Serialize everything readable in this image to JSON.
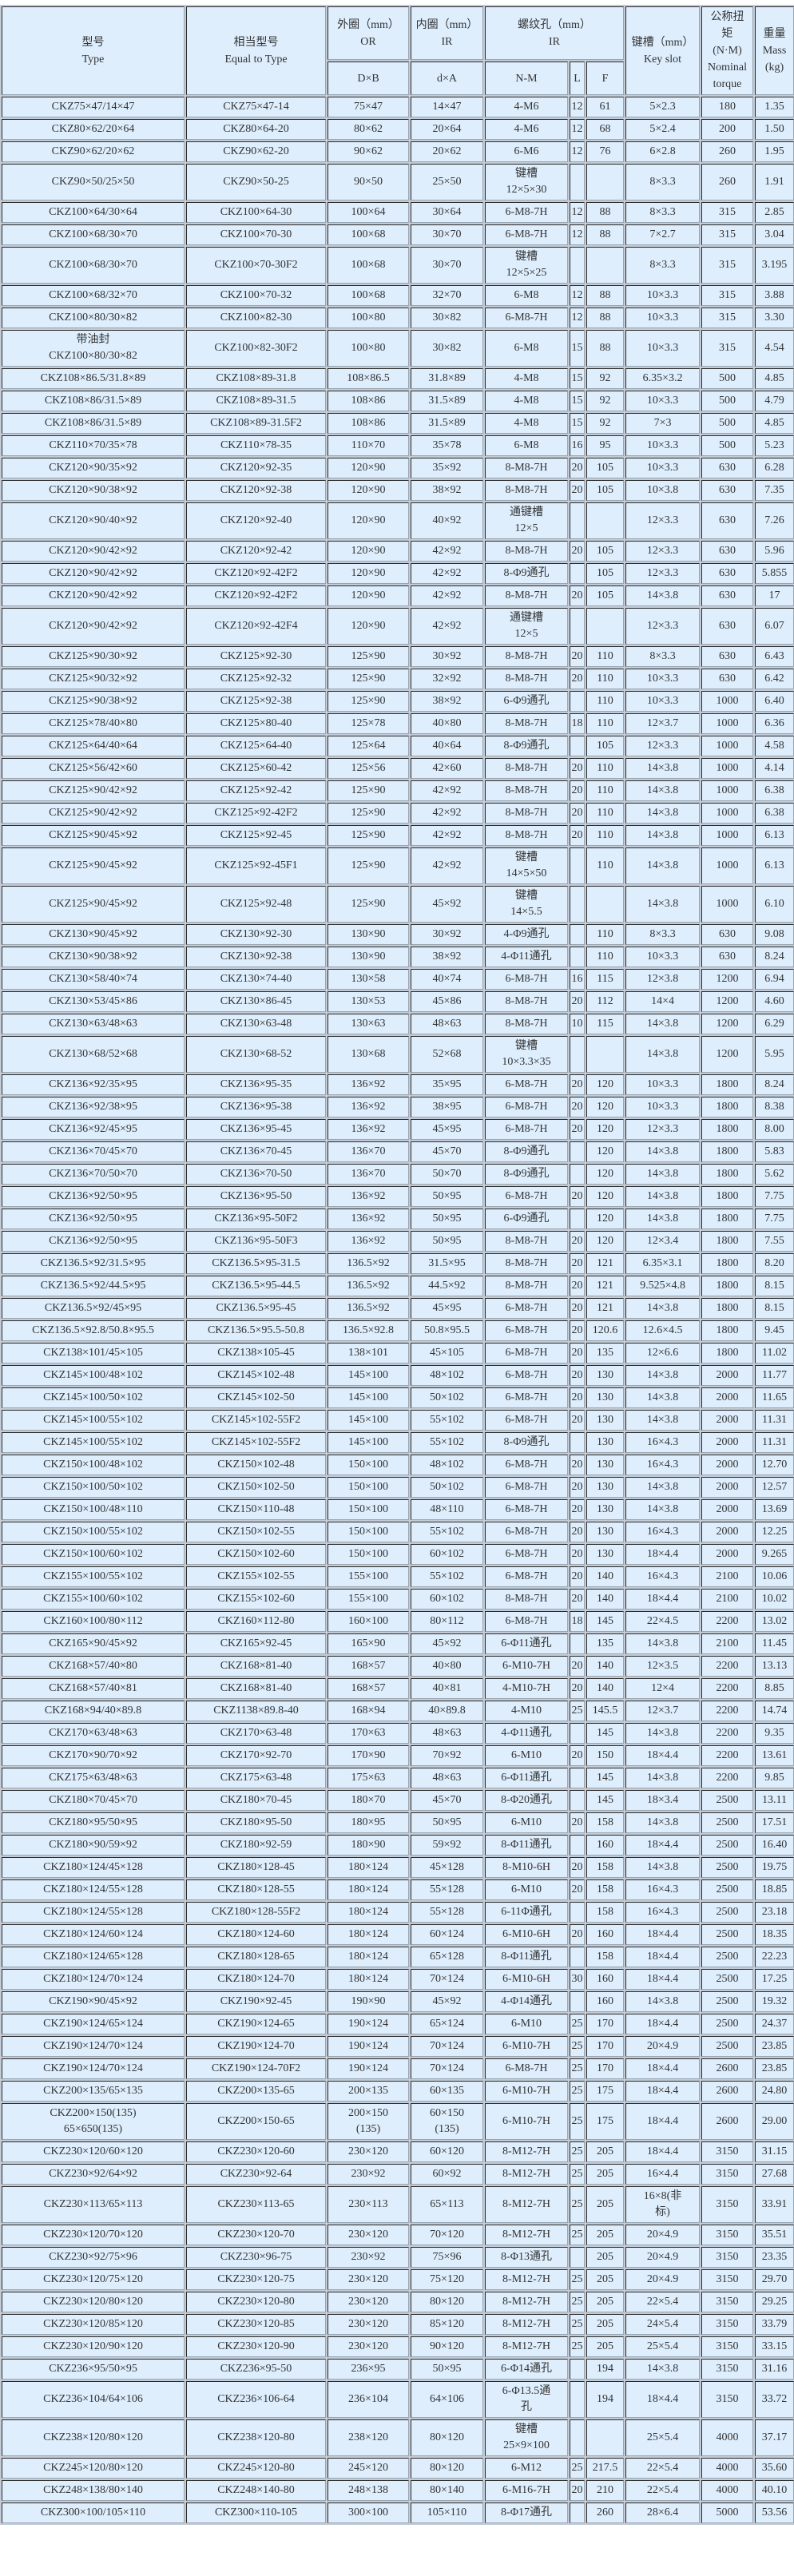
{
  "colors": {
    "cell_background": "#deeefd",
    "grid_background": "#c3ccd6",
    "text": "#333333"
  },
  "header": {
    "type": "型号\nType",
    "equal": "相当型号\nEqual to Type",
    "or": "外圈（mm）\nOR",
    "ir": "内圈（mm）\nIR",
    "thread": "螺纹孔（mm）\nIR",
    "key": "键槽（mm）\nKey slot",
    "torque": "公称扭\n矩\n(N·M)\nNominal\ntorque",
    "mass": "重量\nMass\n(kg)",
    "or_sub": "D×B",
    "ir_sub": "d×A",
    "nm_sub": "N-M",
    "l_sub": "L",
    "f_sub": "F"
  },
  "rows": [
    [
      "CKZ75×47/14×47",
      "CKZ75×47-14",
      "75×47",
      "14×47",
      "4-M6",
      "12",
      "61",
      "5×2.3",
      "180",
      "1.35"
    ],
    [
      "CKZ80×62/20×64",
      "CKZ80×64-20",
      "80×62",
      "20×64",
      "4-M6",
      "12",
      "68",
      "5×2.4",
      "200",
      "1.50"
    ],
    [
      "CKZ90×62/20×62",
      "CKZ90×62-20",
      "90×62",
      "20×62",
      "6-M6",
      "12",
      "76",
      "6×2.8",
      "260",
      "1.95"
    ],
    [
      "CKZ90×50/25×50",
      "CKZ90×50-25",
      "90×50",
      "25×50",
      "键槽\n12×5×30",
      "",
      "",
      "8×3.3",
      "260",
      "1.91"
    ],
    [
      "CKZ100×64/30×64",
      "CKZ100×64-30",
      "100×64",
      "30×64",
      "6-M8-7H",
      "12",
      "88",
      "8×3.3",
      "315",
      "2.85"
    ],
    [
      "CKZ100×68/30×70",
      "CKZ100×70-30",
      "100×68",
      "30×70",
      "6-M8-7H",
      "12",
      "88",
      "7×2.7",
      "315",
      "3.04"
    ],
    [
      "CKZ100×68/30×70",
      "CKZ100×70-30F2",
      "100×68",
      "30×70",
      "键槽\n12×5×25",
      "",
      "",
      "8×3.3",
      "315",
      "3.195"
    ],
    [
      "CKZ100×68/32×70",
      "CKZ100×70-32",
      "100×68",
      "32×70",
      "6-M8",
      "12",
      "88",
      "10×3.3",
      "315",
      "3.88"
    ],
    [
      "CKZ100×80/30×82",
      "CKZ100×82-30",
      "100×80",
      "30×82",
      "6-M8-7H",
      "12",
      "88",
      "10×3.3",
      "315",
      "3.30"
    ],
    [
      "带油封\nCKZ100×80/30×82",
      "CKZ100×82-30F2",
      "100×80",
      "30×82",
      "6-M8",
      "15",
      "88",
      "10×3.3",
      "315",
      "4.54"
    ],
    [
      "CKZ108×86.5/31.8×89",
      "CKZ108×89-31.8",
      "108×86.5",
      "31.8×89",
      "4-M8",
      "15",
      "92",
      "6.35×3.2",
      "500",
      "4.85"
    ],
    [
      "CKZ108×86/31.5×89",
      "CKZ108×89-31.5",
      "108×86",
      "31.5×89",
      "4-M8",
      "15",
      "92",
      "10×3.3",
      "500",
      "4.79"
    ],
    [
      "CKZ108×86/31.5×89",
      "CKZ108×89-31.5F2",
      "108×86",
      "31.5×89",
      "4-M8",
      "15",
      "92",
      "7×3",
      "500",
      "4.85"
    ],
    [
      "CKZ110×70/35×78",
      "CKZ110×78-35",
      "110×70",
      "35×78",
      "6-M8",
      "16",
      "95",
      "10×3.3",
      "500",
      "5.23"
    ],
    [
      "CKZ120×90/35×92",
      "CKZ120×92-35",
      "120×90",
      "35×92",
      "8-M8-7H",
      "20",
      "105",
      "10×3.3",
      "630",
      "6.28"
    ],
    [
      "CKZ120×90/38×92",
      "CKZ120×92-38",
      "120×90",
      "38×92",
      "8-M8-7H",
      "20",
      "105",
      "10×3.8",
      "630",
      "7.35"
    ],
    [
      "CKZ120×90/40×92",
      "CKZ120×92-40",
      "120×90",
      "40×92",
      "通键槽\n12×5",
      "",
      "",
      "12×3.3",
      "630",
      "7.26"
    ],
    [
      "CKZ120×90/42×92",
      "CKZ120×92-42",
      "120×90",
      "42×92",
      "8-M8-7H",
      "20",
      "105",
      "12×3.3",
      "630",
      "5.96"
    ],
    [
      "CKZ120×90/42×92",
      "CKZ120×92-42F2",
      "120×90",
      "42×92",
      "8-Φ9通孔",
      "",
      "105",
      "12×3.3",
      "630",
      "5.855"
    ],
    [
      "CKZ120×90/42×92",
      "CKZ120×92-42F2",
      "120×90",
      "42×92",
      "8-M8-7H",
      "20",
      "105",
      "14×3.8",
      "630",
      "17"
    ],
    [
      "CKZ120×90/42×92",
      "CKZ120×92-42F4",
      "120×90",
      "42×92",
      "通键槽\n12×5",
      "",
      "",
      "12×3.3",
      "630",
      "6.07"
    ],
    [
      "CKZ125×90/30×92",
      "CKZ125×92-30",
      "125×90",
      "30×92",
      "8-M8-7H",
      "20",
      "110",
      "8×3.3",
      "630",
      "6.43"
    ],
    [
      "CKZ125×90/32×92",
      "CKZ125×92-32",
      "125×90",
      "32×92",
      "8-M8-7H",
      "20",
      "110",
      "10×3.3",
      "630",
      "6.42"
    ],
    [
      "CKZ125×90/38×92",
      "CKZ125×92-38",
      "125×90",
      "38×92",
      "6-Φ9通孔",
      "",
      "110",
      "10×3.3",
      "1000",
      "6.40"
    ],
    [
      "CKZ125×78/40×80",
      "CKZ125×80-40",
      "125×78",
      "40×80",
      "8-M8-7H",
      "18",
      "110",
      "12×3.7",
      "1000",
      "6.36"
    ],
    [
      "CKZ125×64/40×64",
      "CKZ125×64-40",
      "125×64",
      "40×64",
      "8-Φ9通孔",
      "",
      "105",
      "12×3.3",
      "1000",
      "4.58"
    ],
    [
      "CKZ125×56/42×60",
      "CKZ125×60-42",
      "125×56",
      "42×60",
      "8-M8-7H",
      "20",
      "110",
      "14×3.8",
      "1000",
      "4.14"
    ],
    [
      "CKZ125×90/42×92",
      "CKZ125×92-42",
      "125×90",
      "42×92",
      "8-M8-7H",
      "20",
      "110",
      "14×3.8",
      "1000",
      "6.38"
    ],
    [
      "CKZ125×90/42×92",
      "CKZ125×92-42F2",
      "125×90",
      "42×92",
      "8-M8-7H",
      "20",
      "110",
      "14×3.8",
      "1000",
      "6.38"
    ],
    [
      "CKZ125×90/45×92",
      "CKZ125×92-45",
      "125×90",
      "42×92",
      "8-M8-7H",
      "20",
      "110",
      "14×3.8",
      "1000",
      "6.13"
    ],
    [
      "CKZ125×90/45×92",
      "CKZ125×92-45F1",
      "125×90",
      "42×92",
      "键槽\n14×5×50",
      "",
      "110",
      "14×3.8",
      "1000",
      "6.13"
    ],
    [
      "CKZ125×90/45×92",
      "CKZ125×92-48",
      "125×90",
      "45×92",
      "键槽\n14×5.5",
      "",
      "",
      "14×3.8",
      "1000",
      "6.10"
    ],
    [
      "CKZ130×90/45×92",
      "CKZ130×92-30",
      "130×90",
      "30×92",
      "4-Φ9通孔",
      "",
      "110",
      "8×3.3",
      "630",
      "9.08"
    ],
    [
      "CKZ130×90/38×92",
      "CKZ130×92-38",
      "130×90",
      "38×92",
      "4-Φ11通孔",
      "",
      "110",
      "10×3.3",
      "630",
      "8.24"
    ],
    [
      "CKZ130×58/40×74",
      "CKZ130×74-40",
      "130×58",
      "40×74",
      "6-M8-7H",
      "16",
      "115",
      "12×3.8",
      "1200",
      "6.94"
    ],
    [
      "CKZ130×53/45×86",
      "CKZ130×86-45",
      "130×53",
      "45×86",
      "8-M8-7H",
      "20",
      "112",
      "14×4",
      "1200",
      "4.60"
    ],
    [
      "CKZ130×63/48×63",
      "CKZ130×63-48",
      "130×63",
      "48×63",
      "8-M8-7H",
      "10",
      "115",
      "14×3.8",
      "1200",
      "6.29"
    ],
    [
      "CKZ130×68/52×68",
      "CKZ130×68-52",
      "130×68",
      "52×68",
      "键槽\n10×3.3×35",
      "",
      "",
      "14×3.8",
      "1200",
      "5.95"
    ],
    [
      "CKZ136×92/35×95",
      "CKZ136×95-35",
      "136×92",
      "35×95",
      "6-M8-7H",
      "20",
      "120",
      "10×3.3",
      "1800",
      "8.24"
    ],
    [
      "CKZ136×92/38×95",
      "CKZ136×95-38",
      "136×92",
      "38×95",
      "6-M8-7H",
      "20",
      "120",
      "10×3.3",
      "1800",
      "8.38"
    ],
    [
      "CKZ136×92/45×95",
      "CKZ136×95-45",
      "136×92",
      "45×95",
      "6-M8-7H",
      "20",
      "120",
      "12×3.3",
      "1800",
      "8.00"
    ],
    [
      "CKZ136×70/45×70",
      "CKZ136×70-45",
      "136×70",
      "45×70",
      "8-Φ9通孔",
      "",
      "120",
      "14×3.8",
      "1800",
      "5.83"
    ],
    [
      "CKZ136×70/50×70",
      "CKZ136×70-50",
      "136×70",
      "50×70",
      "8-Φ9通孔",
      "",
      "120",
      "14×3.8",
      "1800",
      "5.62"
    ],
    [
      "CKZ136×92/50×95",
      "CKZ136×95-50",
      "136×92",
      "50×95",
      "6-M8-7H",
      "20",
      "120",
      "14×3.8",
      "1800",
      "7.75"
    ],
    [
      "CKZ136×92/50×95",
      "CKZ136×95-50F2",
      "136×92",
      "50×95",
      "6-Φ9通孔",
      "",
      "120",
      "14×3.8",
      "1800",
      "7.75"
    ],
    [
      "CKZ136×92/50×95",
      "CKZ136×95-50F3",
      "136×92",
      "50×95",
      "8-M8-7H",
      "20",
      "120",
      "12×3.4",
      "1800",
      "7.55"
    ],
    [
      "CKZ136.5×92/31.5×95",
      "CKZ136.5×95-31.5",
      "136.5×92",
      "31.5×95",
      "8-M8-7H",
      "20",
      "121",
      "6.35×3.1",
      "1800",
      "8.20"
    ],
    [
      "CKZ136.5×92/44.5×95",
      "CKZ136.5×95-44.5",
      "136.5×92",
      "44.5×92",
      "8-M8-7H",
      "20",
      "121",
      "9.525×4.8",
      "1800",
      "8.15"
    ],
    [
      "CKZ136.5×92/45×95",
      "CKZ136.5×95-45",
      "136.5×92",
      "45×95",
      "6-M8-7H",
      "20",
      "121",
      "14×3.8",
      "1800",
      "8.15"
    ],
    [
      "CKZ136.5×92.8/50.8×95.5",
      "CKZ136.5×95.5-50.8",
      "136.5×92.8",
      "50.8×95.5",
      "6-M8-7H",
      "20",
      "120.6",
      "12.6×4.5",
      "1800",
      "9.45"
    ],
    [
      "CKZ138×101/45×105",
      "CKZ138×105-45",
      "138×101",
      "45×105",
      "6-M8-7H",
      "20",
      "135",
      "12×6.6",
      "1800",
      "11.02"
    ],
    [
      "CKZ145×100/48×102",
      "CKZ145×102-48",
      "145×100",
      "48×102",
      "6-M8-7H",
      "20",
      "130",
      "14×3.8",
      "2000",
      "11.77"
    ],
    [
      "CKZ145×100/50×102",
      "CKZ145×102-50",
      "145×100",
      "50×102",
      "6-M8-7H",
      "20",
      "130",
      "14×3.8",
      "2000",
      "11.65"
    ],
    [
      "CKZ145×100/55×102",
      "CKZ145×102-55F2",
      "145×100",
      "55×102",
      "6-M8-7H",
      "20",
      "130",
      "14×3.8",
      "2000",
      "11.31"
    ],
    [
      "CKZ145×100/55×102",
      "CKZ145×102-55F2",
      "145×100",
      "55×102",
      "8-Φ9通孔",
      "",
      "130",
      "16×4.3",
      "2000",
      "11.31"
    ],
    [
      "CKZ150×100/48×102",
      "CKZ150×102-48",
      "150×100",
      "48×102",
      "6-M8-7H",
      "20",
      "130",
      "16×4.3",
      "2000",
      "12.70"
    ],
    [
      "CKZ150×100/50×102",
      "CKZ150×102-50",
      "150×100",
      "50×102",
      "6-M8-7H",
      "20",
      "130",
      "14×3.8",
      "2000",
      "12.57"
    ],
    [
      "CKZ150×100/48×110",
      "CKZ150×110-48",
      "150×100",
      "48×110",
      "6-M8-7H",
      "20",
      "130",
      "14×3.8",
      "2000",
      "13.69"
    ],
    [
      "CKZ150×100/55×102",
      "CKZ150×102-55",
      "150×100",
      "55×102",
      "6-M8-7H",
      "20",
      "130",
      "16×4.3",
      "2000",
      "12.25"
    ],
    [
      "CKZ150×100/60×102",
      "CKZ150×102-60",
      "150×100",
      "60×102",
      "6-M8-7H",
      "20",
      "130",
      "18×4.4",
      "2000",
      "9.265"
    ],
    [
      "CKZ155×100/55×102",
      "CKZ155×102-55",
      "155×100",
      "55×102",
      "6-M8-7H",
      "20",
      "140",
      "16×4.3",
      "2100",
      "10.06"
    ],
    [
      "CKZ155×100/60×102",
      "CKZ155×102-60",
      "155×100",
      "60×102",
      "8-M8-7H",
      "20",
      "140",
      "18×4.4",
      "2100",
      "10.02"
    ],
    [
      "CKZ160×100/80×112",
      "CKZ160×112-80",
      "160×100",
      "80×112",
      "6-M8-7H",
      "18",
      "145",
      "22×4.5",
      "2200",
      "13.02"
    ],
    [
      "CKZ165×90/45×92",
      "CKZ165×92-45",
      "165×90",
      "45×92",
      "6-Φ11通孔",
      "",
      "135",
      "14×3.8",
      "2100",
      "11.45"
    ],
    [
      "CKZ168×57/40×80",
      "CKZ168×81-40",
      "168×57",
      "40×80",
      "6-M10-7H",
      "20",
      "140",
      "12×3.5",
      "2200",
      "13.13"
    ],
    [
      "CKZ168×57/40×81",
      "CKZ168×81-40",
      "168×57",
      "40×81",
      "4-M10-7H",
      "20",
      "140",
      "12×4",
      "2200",
      "8.85"
    ],
    [
      "CKZ168×94/40×89.8",
      "CKZ1138×89.8-40",
      "168×94",
      "40×89.8",
      "4-M10",
      "25",
      "145.5",
      "12×3.7",
      "2200",
      "14.74"
    ],
    [
      "CKZ170×63/48×63",
      "CKZ170×63-48",
      "170×63",
      "48×63",
      "4-Φ11通孔",
      "",
      "145",
      "14×3.8",
      "2200",
      "9.35"
    ],
    [
      "CKZ170×90/70×92",
      "CKZ170×92-70",
      "170×90",
      "70×92",
      "6-M10",
      "20",
      "150",
      "18×4.4",
      "2200",
      "13.61"
    ],
    [
      "CKZ175×63/48×63",
      "CKZ175×63-48",
      "175×63",
      "48×63",
      "6-Φ11通孔",
      "",
      "145",
      "14×3.8",
      "2200",
      "9.85"
    ],
    [
      "CKZ180×70/45×70",
      "CKZ180×70-45",
      "180×70",
      "45×70",
      "8-Φ20通孔",
      "",
      "145",
      "18×3.4",
      "2500",
      "13.11"
    ],
    [
      "CKZ180×95/50×95",
      "CKZ180×95-50",
      "180×95",
      "50×95",
      "6-M10",
      "20",
      "158",
      "14×3.8",
      "2500",
      "17.51"
    ],
    [
      "CKZ180×90/59×92",
      "CKZ180×92-59",
      "180×90",
      "59×92",
      "8-Φ11通孔",
      "",
      "160",
      "18×4.4",
      "2500",
      "16.40"
    ],
    [
      "CKZ180×124/45×128",
      "CKZ180×128-45",
      "180×124",
      "45×128",
      "8-M10-6H",
      "20",
      "158",
      "14×3.8",
      "2500",
      "19.75"
    ],
    [
      "CKZ180×124/55×128",
      "CKZ180×128-55",
      "180×124",
      "55×128",
      "6-M10",
      "20",
      "158",
      "16×4.3",
      "2500",
      "18.85"
    ],
    [
      "CKZ180×124/55×128",
      "CKZ180×128-55F2",
      "180×124",
      "55×128",
      "6-11Φ通孔",
      "",
      "158",
      "16×4.3",
      "2500",
      "23.18"
    ],
    [
      "CKZ180×124/60×124",
      "CKZ180×124-60",
      "180×124",
      "60×124",
      "6-M10-6H",
      "20",
      "160",
      "18×4.4",
      "2500",
      "18.35"
    ],
    [
      "CKZ180×124/65×128",
      "CKZ180×128-65",
      "180×124",
      "65×128",
      "8-Φ11通孔",
      "",
      "158",
      "18×4.4",
      "2500",
      "22.23"
    ],
    [
      "CKZ180×124/70×124",
      "CKZ180×124-70",
      "180×124",
      "70×124",
      "6-M10-6H",
      "30",
      "160",
      "18×4.4",
      "2500",
      "17.25"
    ],
    [
      "CKZ190×90/45×92",
      "CKZ190×92-45",
      "190×90",
      "45×92",
      "4-Φ14通孔",
      "",
      "160",
      "14×3.8",
      "2500",
      "19.32"
    ],
    [
      "CKZ190×124/65×124",
      "CKZ190×124-65",
      "190×124",
      "65×124",
      "6-M10",
      "25",
      "170",
      "18×4.4",
      "2500",
      "24.37"
    ],
    [
      "CKZ190×124/70×124",
      "CKZ190×124-70",
      "190×124",
      "70×124",
      "6-M10-7H",
      "25",
      "170",
      "20×4.9",
      "2500",
      "23.85"
    ],
    [
      "CKZ190×124/70×124",
      "CKZ190×124-70F2",
      "190×124",
      "70×124",
      "6-M8-7H",
      "25",
      "170",
      "18×4.4",
      "2600",
      "23.85"
    ],
    [
      "CKZ200×135/65×135",
      "CKZ200×135-65",
      "200×135",
      "60×135",
      "6-M10-7H",
      "25",
      "175",
      "18×4.4",
      "2600",
      "24.80"
    ],
    [
      "CKZ200×150(135)\n65×650(135)",
      "CKZ200×150-65",
      "200×150\n(135)",
      "60×150\n(135)",
      "6-M10-7H",
      "25",
      "175",
      "18×4.4",
      "2600",
      "29.00"
    ],
    [
      "CKZ230×120/60×120",
      "CKZ230×120-60",
      "230×120",
      "60×120",
      "8-M12-7H",
      "25",
      "205",
      "18×4.4",
      "3150",
      "31.15"
    ],
    [
      "CKZ230×92/64×92",
      "CKZ230×92-64",
      "230×92",
      "60×92",
      "8-M12-7H",
      "25",
      "205",
      "16×4.4",
      "3150",
      "27.68"
    ],
    [
      "CKZ230×113/65×113",
      "CKZ230×113-65",
      "230×113",
      "65×113",
      "8-M12-7H",
      "25",
      "205",
      "16×8(非\n标)",
      "3150",
      "33.91"
    ],
    [
      "CKZ230×120/70×120",
      "CKZ230×120-70",
      "230×120",
      "70×120",
      "8-M12-7H",
      "25",
      "205",
      "20×4.9",
      "3150",
      "35.51"
    ],
    [
      "CKZ230×92/75×96",
      "CKZ230×96-75",
      "230×92",
      "75×96",
      "8-Φ13通孔",
      "",
      "205",
      "20×4.9",
      "3150",
      "23.35"
    ],
    [
      "CKZ230×120/75×120",
      "CKZ230×120-75",
      "230×120",
      "75×120",
      "8-M12-7H",
      "25",
      "205",
      "20×4.9",
      "3150",
      "29.70"
    ],
    [
      "CKZ230×120/80×120",
      "CKZ230×120-80",
      "230×120",
      "80×120",
      "8-M12-7H",
      "25",
      "205",
      "22×5.4",
      "3150",
      "29.25"
    ],
    [
      "CKZ230×120/85×120",
      "CKZ230×120-85",
      "230×120",
      "85×120",
      "8-M12-7H",
      "25",
      "205",
      "24×5.4",
      "3150",
      "33.79"
    ],
    [
      "CKZ230×120/90×120",
      "CKZ230×120-90",
      "230×120",
      "90×120",
      "8-M12-7H",
      "25",
      "205",
      "25×5.4",
      "3150",
      "33.15"
    ],
    [
      "CKZ236×95/50×95",
      "CKZ236×95-50",
      "236×95",
      "50×95",
      "6-Φ14通孔",
      "",
      "194",
      "14×3.8",
      "3150",
      "31.16"
    ],
    [
      "CKZ236×104/64×106",
      "CKZ236×106-64",
      "236×104",
      "64×106",
      "6-Φ13.5通\n孔",
      "",
      "194",
      "18×4.4",
      "3150",
      "33.72"
    ],
    [
      "CKZ238×120/80×120",
      "CKZ238×120-80",
      "238×120",
      "80×120",
      "键槽\n25×9×100",
      "",
      "",
      "25×5.4",
      "4000",
      "37.17"
    ],
    [
      "CKZ245×120/80×120",
      "CKZ245×120-80",
      "245×120",
      "80×120",
      "6-M12",
      "25",
      "217.5",
      "22×5.4",
      "4000",
      "35.60"
    ],
    [
      "CKZ248×138/80×140",
      "CKZ248×140-80",
      "248×138",
      "80×140",
      "6-M16-7H",
      "20",
      "210",
      "22×5.4",
      "4000",
      "40.10"
    ],
    [
      "CKZ300×100/105×110",
      "CKZ300×110-105",
      "300×100",
      "105×110",
      "8-Φ17通孔",
      "",
      "260",
      "28×6.4",
      "5000",
      "53.56"
    ]
  ]
}
